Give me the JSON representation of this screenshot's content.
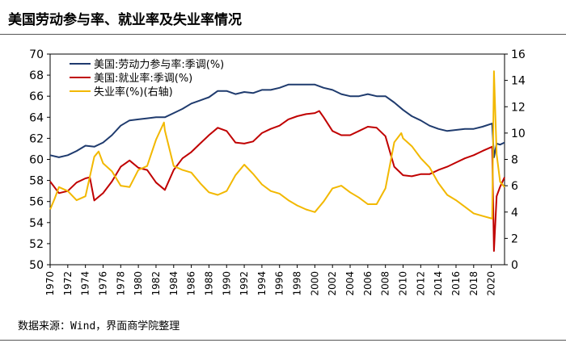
{
  "title": "美国劳动参与率、就业率及失业率情况",
  "source": "数据来源：Wind，界面商学院整理",
  "chart_data": {
    "type": "line",
    "ylim": [
      50,
      70
    ],
    "y2lim": [
      0,
      16
    ],
    "yticks": [
      "50",
      "52",
      "54",
      "56",
      "58",
      "60",
      "62",
      "64",
      "66",
      "68",
      "70"
    ],
    "y2ticks": [
      "0",
      "2",
      "4",
      "6",
      "8",
      "10",
      "12",
      "14",
      "16"
    ],
    "xlim": [
      1970,
      2021.5
    ],
    "xticks": [
      "1970",
      "1972",
      "1974",
      "1976",
      "1978",
      "1980",
      "1982",
      "1984",
      "1986",
      "1988",
      "1990",
      "1992",
      "1994",
      "1996",
      "1998",
      "2000",
      "2002",
      "2004",
      "2006",
      "2008",
      "2010",
      "2012",
      "2014",
      "2016",
      "2018",
      "2020"
    ],
    "legend_position": "top-left",
    "series": [
      {
        "name": "美国:劳动力参与率:季调(%)",
        "color": "#1f3b6e",
        "axis": "left",
        "points": [
          [
            1970,
            60.4
          ],
          [
            1971,
            60.2
          ],
          [
            1972,
            60.4
          ],
          [
            1973,
            60.8
          ],
          [
            1974,
            61.3
          ],
          [
            1975,
            61.2
          ],
          [
            1976,
            61.6
          ],
          [
            1977,
            62.3
          ],
          [
            1978,
            63.2
          ],
          [
            1979,
            63.7
          ],
          [
            1980,
            63.8
          ],
          [
            1981,
            63.9
          ],
          [
            1982,
            64.0
          ],
          [
            1983,
            64.0
          ],
          [
            1984,
            64.4
          ],
          [
            1985,
            64.8
          ],
          [
            1986,
            65.3
          ],
          [
            1987,
            65.6
          ],
          [
            1988,
            65.9
          ],
          [
            1989,
            66.5
          ],
          [
            1990,
            66.5
          ],
          [
            1991,
            66.2
          ],
          [
            1992,
            66.4
          ],
          [
            1993,
            66.3
          ],
          [
            1994,
            66.6
          ],
          [
            1995,
            66.6
          ],
          [
            1996,
            66.8
          ],
          [
            1997,
            67.1
          ],
          [
            1998,
            67.1
          ],
          [
            1999,
            67.1
          ],
          [
            2000,
            67.1
          ],
          [
            2001,
            66.8
          ],
          [
            2002,
            66.6
          ],
          [
            2003,
            66.2
          ],
          [
            2004,
            66.0
          ],
          [
            2005,
            66.0
          ],
          [
            2006,
            66.2
          ],
          [
            2007,
            66.0
          ],
          [
            2008,
            66.0
          ],
          [
            2009,
            65.4
          ],
          [
            2010,
            64.7
          ],
          [
            2011,
            64.1
          ],
          [
            2012,
            63.7
          ],
          [
            2013,
            63.2
          ],
          [
            2014,
            62.9
          ],
          [
            2015,
            62.7
          ],
          [
            2016,
            62.8
          ],
          [
            2017,
            62.9
          ],
          [
            2018,
            62.9
          ],
          [
            2019,
            63.1
          ],
          [
            2020.1,
            63.4
          ],
          [
            2020.3,
            60.2
          ],
          [
            2020.6,
            61.5
          ],
          [
            2021,
            61.4
          ],
          [
            2021.5,
            61.6
          ]
        ]
      },
      {
        "name": "美国:就业率:季调(%)",
        "color": "#c00000",
        "axis": "left",
        "points": [
          [
            1970,
            57.9
          ],
          [
            1971,
            56.8
          ],
          [
            1972,
            57.0
          ],
          [
            1973,
            57.8
          ],
          [
            1974,
            58.2
          ],
          [
            1974.5,
            58.3
          ],
          [
            1975,
            56.1
          ],
          [
            1976,
            56.8
          ],
          [
            1977,
            57.9
          ],
          [
            1978,
            59.3
          ],
          [
            1979,
            59.9
          ],
          [
            1980,
            59.2
          ],
          [
            1981,
            59.0
          ],
          [
            1982,
            57.8
          ],
          [
            1983,
            57.1
          ],
          [
            1984,
            59.0
          ],
          [
            1985,
            60.1
          ],
          [
            1986,
            60.7
          ],
          [
            1987,
            61.5
          ],
          [
            1988,
            62.3
          ],
          [
            1989,
            63.0
          ],
          [
            1990,
            62.7
          ],
          [
            1991,
            61.6
          ],
          [
            1992,
            61.5
          ],
          [
            1993,
            61.7
          ],
          [
            1994,
            62.5
          ],
          [
            1995,
            62.9
          ],
          [
            1996,
            63.2
          ],
          [
            1997,
            63.8
          ],
          [
            1998,
            64.1
          ],
          [
            1999,
            64.3
          ],
          [
            2000,
            64.4
          ],
          [
            2000.5,
            64.6
          ],
          [
            2001,
            64.0
          ],
          [
            2002,
            62.7
          ],
          [
            2003,
            62.3
          ],
          [
            2004,
            62.3
          ],
          [
            2005,
            62.7
          ],
          [
            2006,
            63.1
          ],
          [
            2007,
            63.0
          ],
          [
            2008,
            62.2
          ],
          [
            2009,
            59.3
          ],
          [
            2010,
            58.5
          ],
          [
            2011,
            58.4
          ],
          [
            2012,
            58.6
          ],
          [
            2013,
            58.6
          ],
          [
            2014,
            59.0
          ],
          [
            2015,
            59.3
          ],
          [
            2016,
            59.7
          ],
          [
            2017,
            60.1
          ],
          [
            2018,
            60.4
          ],
          [
            2019,
            60.8
          ],
          [
            2020.1,
            61.2
          ],
          [
            2020.3,
            51.3
          ],
          [
            2020.6,
            56.5
          ],
          [
            2021,
            57.4
          ],
          [
            2021.5,
            58.3
          ]
        ]
      },
      {
        "name": "失业率(%)(右轴)",
        "color": "#f2b800",
        "axis": "right",
        "points": [
          [
            1970,
            4.2
          ],
          [
            1970.5,
            5.0
          ],
          [
            1971,
            5.9
          ],
          [
            1972,
            5.6
          ],
          [
            1973,
            4.9
          ],
          [
            1974,
            5.2
          ],
          [
            1975,
            8.2
          ],
          [
            1975.5,
            8.6
          ],
          [
            1976,
            7.7
          ],
          [
            1977,
            7.1
          ],
          [
            1978,
            6.0
          ],
          [
            1979,
            5.9
          ],
          [
            1980,
            7.2
          ],
          [
            1981,
            7.5
          ],
          [
            1982,
            9.5
          ],
          [
            1982.9,
            10.8
          ],
          [
            1983,
            10.2
          ],
          [
            1984,
            7.5
          ],
          [
            1985,
            7.2
          ],
          [
            1986,
            7.0
          ],
          [
            1987,
            6.2
          ],
          [
            1988,
            5.5
          ],
          [
            1989,
            5.3
          ],
          [
            1990,
            5.6
          ],
          [
            1991,
            6.8
          ],
          [
            1992,
            7.6
          ],
          [
            1993,
            6.9
          ],
          [
            1994,
            6.1
          ],
          [
            1995,
            5.6
          ],
          [
            1996,
            5.4
          ],
          [
            1997,
            4.9
          ],
          [
            1998,
            4.5
          ],
          [
            1999,
            4.2
          ],
          [
            2000,
            4.0
          ],
          [
            2001,
            4.8
          ],
          [
            2002,
            5.8
          ],
          [
            2003,
            6.0
          ],
          [
            2004,
            5.5
          ],
          [
            2005,
            5.1
          ],
          [
            2006,
            4.6
          ],
          [
            2007,
            4.6
          ],
          [
            2008,
            5.8
          ],
          [
            2009,
            9.3
          ],
          [
            2009.8,
            10.0
          ],
          [
            2010,
            9.6
          ],
          [
            2011,
            9.0
          ],
          [
            2012,
            8.1
          ],
          [
            2013,
            7.4
          ],
          [
            2014,
            6.2
          ],
          [
            2015,
            5.3
          ],
          [
            2016,
            4.9
          ],
          [
            2017,
            4.4
          ],
          [
            2018,
            3.9
          ],
          [
            2019,
            3.7
          ],
          [
            2020.1,
            3.5
          ],
          [
            2020.3,
            14.7
          ],
          [
            2020.6,
            8.4
          ],
          [
            2021,
            6.3
          ],
          [
            2021.5,
            5.9
          ]
        ]
      }
    ]
  }
}
